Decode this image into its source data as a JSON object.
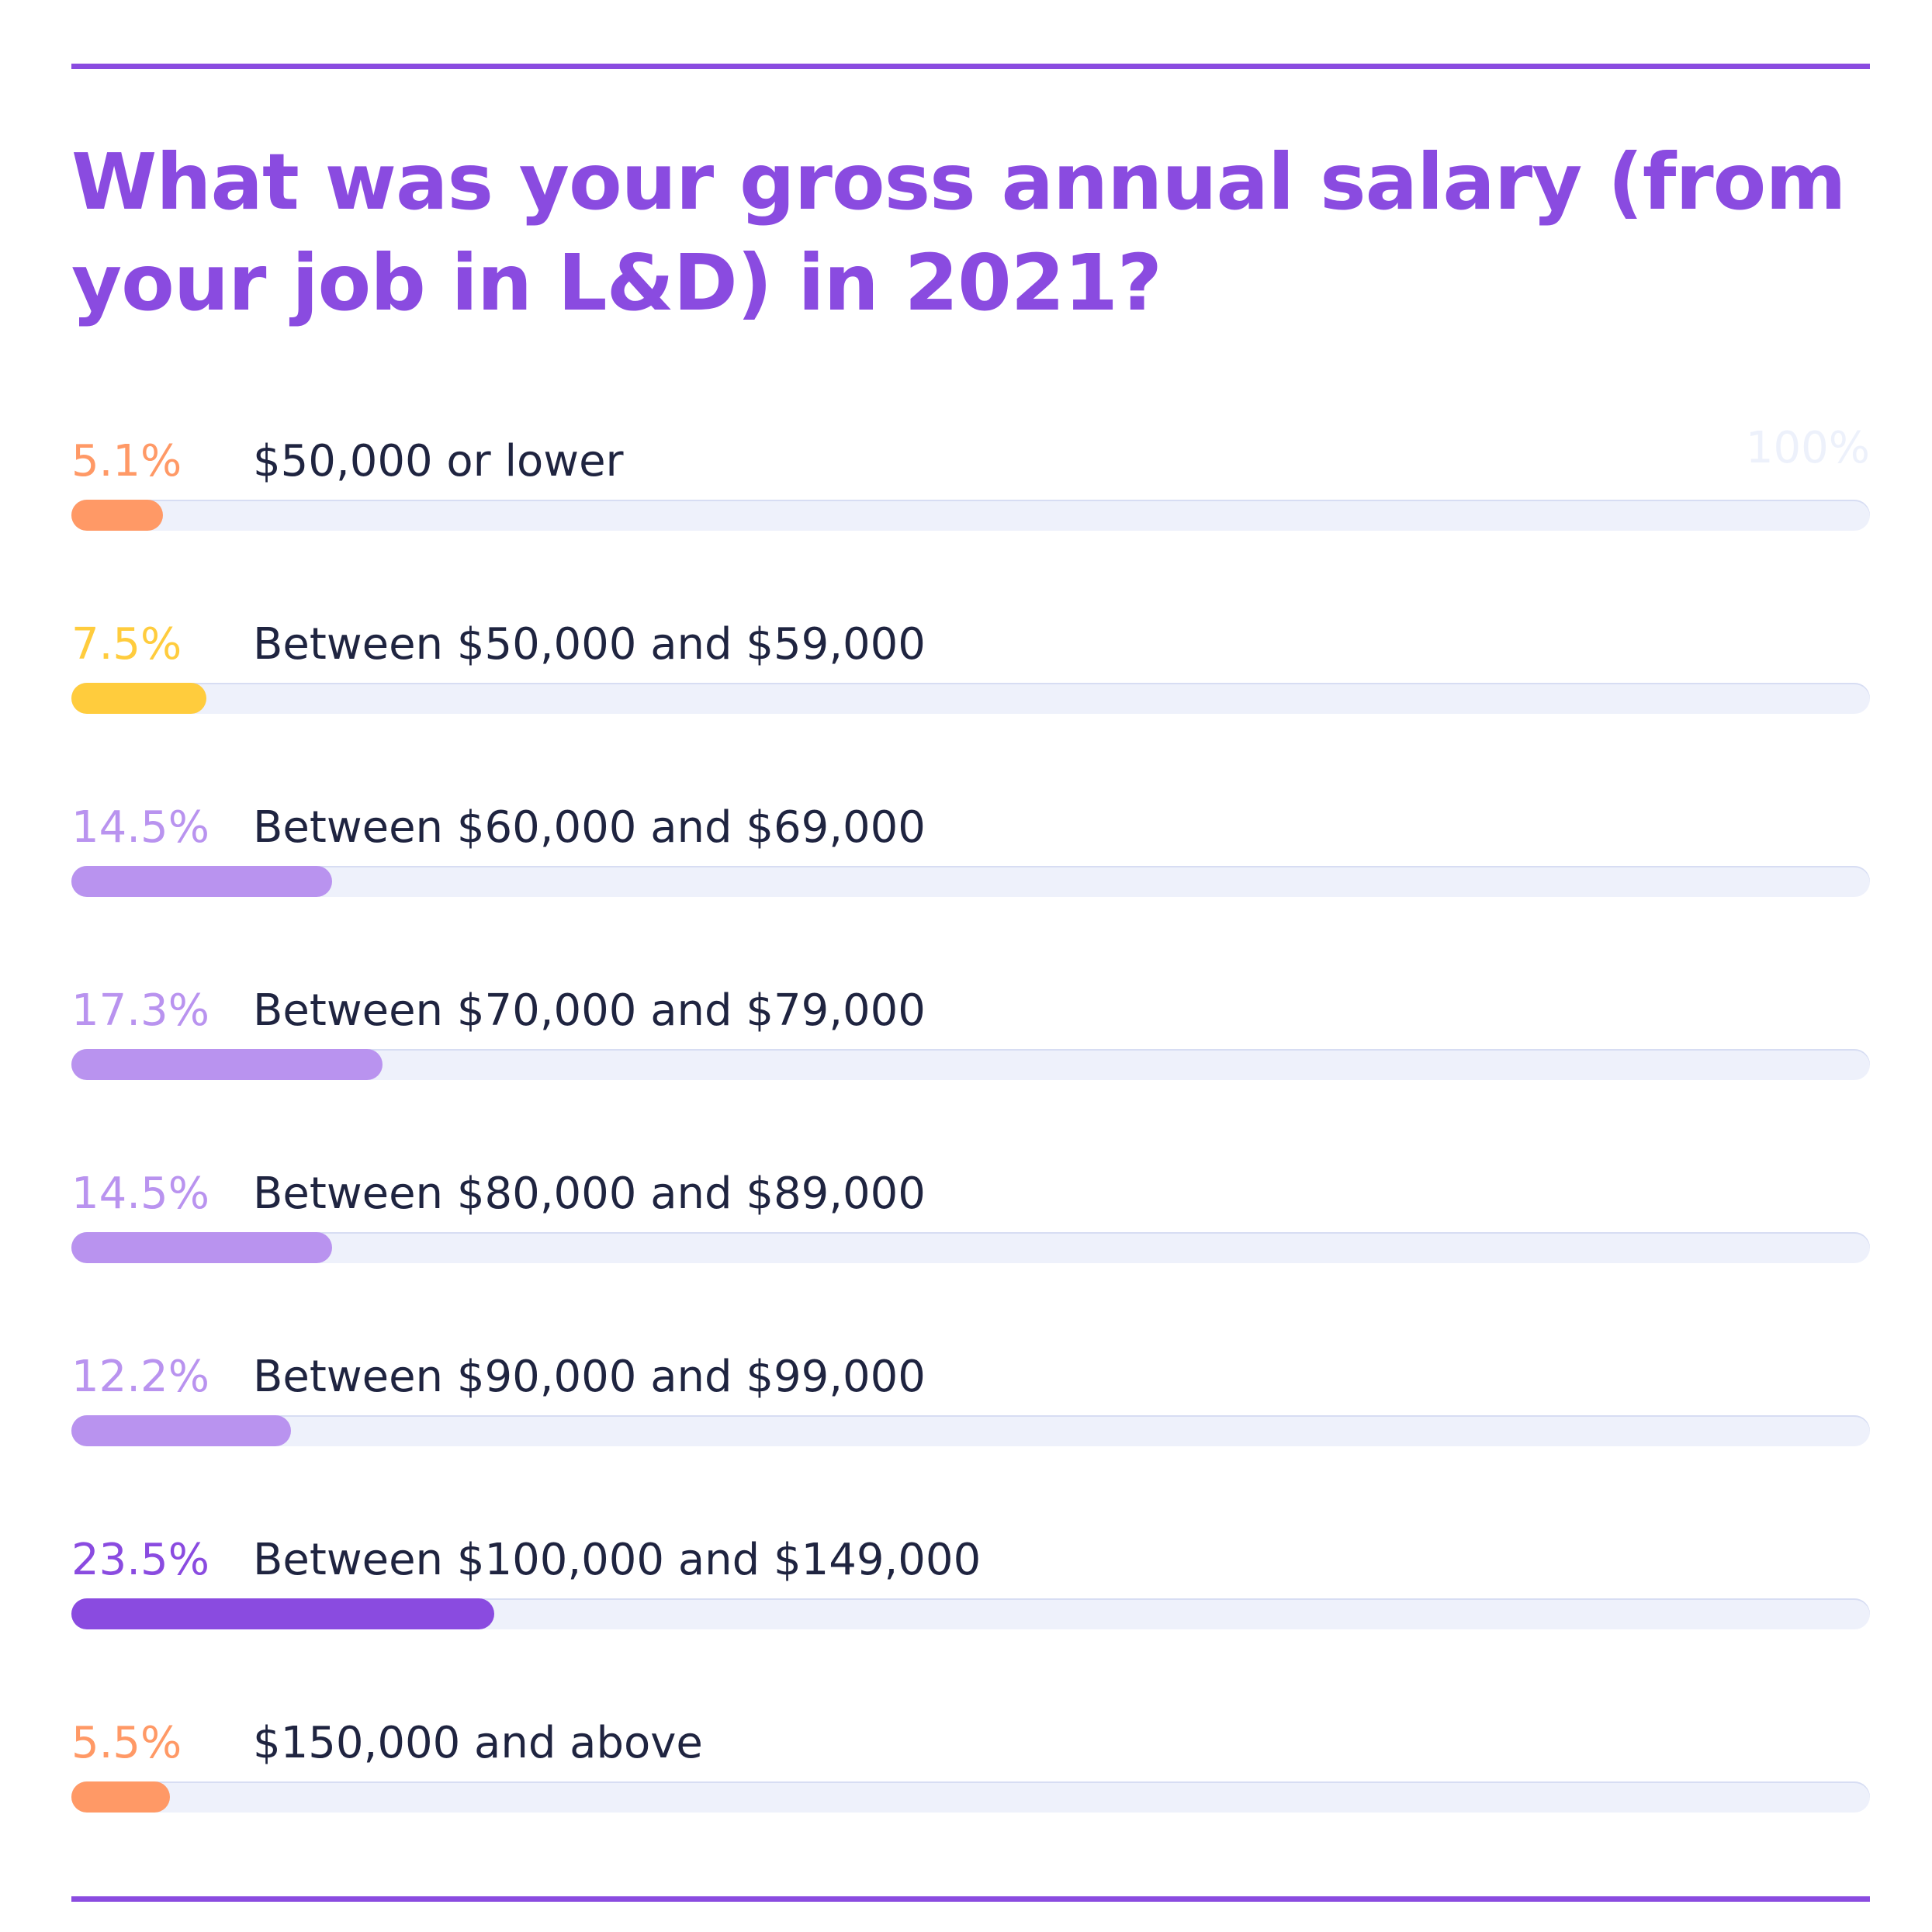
{
  "title": "What was your gross annual salary (from your job in L&D) in 2021?",
  "max_label": "100%",
  "colors": {
    "rule": "#8a4be0",
    "title": "#8a4be0",
    "track": "#eef1fb",
    "orange": "#ff9966",
    "yellow": "#ffcc3d",
    "lavender": "#b993ef",
    "purple": "#8a4be0",
    "label": "#1f2440"
  },
  "chart_data": {
    "type": "bar",
    "orientation": "horizontal",
    "xlim": [
      0,
      100
    ],
    "grid": false,
    "categories": [
      "$50,000 or lower",
      "Between $50,000 and $59,000",
      "Between $60,000 and $69,000",
      "Between $70,000 and $79,000",
      "Between $80,000 and $89,000",
      "Between $90,000 and $99,000",
      "Between $100,000 and $149,000",
      "$150,000 and above"
    ],
    "values": [
      5.1,
      7.5,
      14.5,
      17.3,
      14.5,
      12.2,
      23.5,
      5.5
    ],
    "labels": [
      "5.1%",
      "7.5%",
      "14.5%",
      "17.3%",
      "14.5%",
      "12.2%",
      "23.5%",
      "5.5%"
    ],
    "bar_colors": [
      "#ff9966",
      "#ffcc3d",
      "#b993ef",
      "#b993ef",
      "#b993ef",
      "#b993ef",
      "#8a4be0",
      "#ff9966"
    ]
  }
}
